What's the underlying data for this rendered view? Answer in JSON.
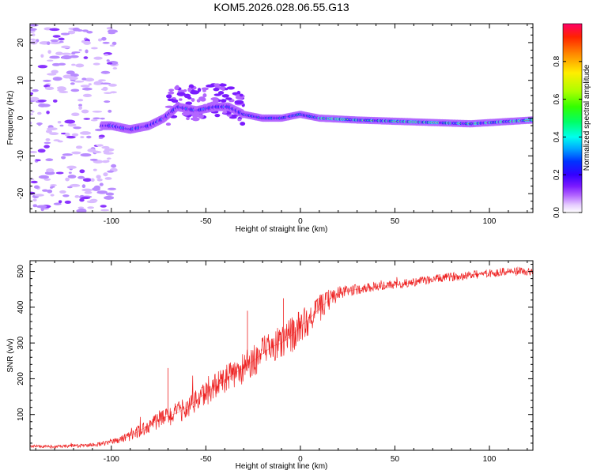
{
  "chart_data": [
    {
      "type": "heatmap",
      "title": "KOM5.2026.028.06.55.G13",
      "xlabel": "Height of straight line (km)",
      "ylabel": "Frequency (Hz)",
      "xlim": [
        -143,
        123
      ],
      "ylim": [
        -25,
        25
      ],
      "xticks": [
        -100,
        -50,
        0,
        50,
        100
      ],
      "xtick_labels": [
        "-100",
        "-50",
        "0",
        "50",
        "100"
      ],
      "yticks": [
        20,
        10,
        0,
        -10,
        -20
      ],
      "ytick_labels": [
        "20",
        "10",
        "0",
        "-10",
        "-20"
      ],
      "colorbar": {
        "label": "Normalized spectral amplitude",
        "range": [
          0,
          1
        ],
        "ticks": [
          0.0,
          0.2,
          0.4,
          0.6,
          0.8
        ],
        "tick_labels": [
          "0.0",
          "0.2",
          "0.4",
          "0.6",
          "0.8"
        ],
        "colors": [
          "#ffffff",
          "#e6ccff",
          "#b366ff",
          "#7a1aff",
          "#3300ff",
          "#0033ff",
          "#00aaff",
          "#00ffee",
          "#00ff66",
          "#33ff00",
          "#aaff00",
          "#ffee00",
          "#ff8800",
          "#ff2200",
          "#ff0066"
        ]
      },
      "ridge": [
        {
          "x": -100,
          "y": -2
        },
        {
          "x": -90,
          "y": -3
        },
        {
          "x": -80,
          "y": -2
        },
        {
          "x": -72,
          "y": 0
        },
        {
          "x": -65,
          "y": 3
        },
        {
          "x": -55,
          "y": 2
        },
        {
          "x": -45,
          "y": 3
        },
        {
          "x": -38,
          "y": 3
        },
        {
          "x": -30,
          "y": 1
        },
        {
          "x": -20,
          "y": 0
        },
        {
          "x": -10,
          "y": 0
        },
        {
          "x": 0,
          "y": 1
        },
        {
          "x": 10,
          "y": 0
        },
        {
          "x": 30,
          "y": -0.5
        },
        {
          "x": 60,
          "y": -1
        },
        {
          "x": 90,
          "y": -1.5
        },
        {
          "x": 123,
          "y": -0.5
        }
      ]
    },
    {
      "type": "line",
      "title": "",
      "xlabel": "Height of straight line (km)",
      "ylabel": "SNR (v/v)",
      "xlim": [
        -143,
        123
      ],
      "ylim": [
        0,
        530
      ],
      "xticks": [
        -100,
        -50,
        0,
        50,
        100
      ],
      "xtick_labels": [
        "-100",
        "-50",
        "0",
        "50",
        "100"
      ],
      "yticks": [
        100,
        200,
        300,
        400,
        500
      ],
      "ytick_labels": [
        "100",
        "200",
        "300",
        "400",
        "500"
      ],
      "series": [
        {
          "name": "SNR",
          "color": "#ee2222",
          "x": [
            -143,
            -130,
            -120,
            -110,
            -100,
            -95,
            -90,
            -85,
            -80,
            -75,
            -70,
            -65,
            -60,
            -55,
            -50,
            -45,
            -40,
            -35,
            -30,
            -25,
            -20,
            -15,
            -10,
            -5,
            0,
            5,
            10,
            15,
            20,
            25,
            30,
            40,
            50,
            60,
            70,
            80,
            90,
            100,
            110,
            123
          ],
          "y": [
            12,
            10,
            12,
            15,
            22,
            30,
            40,
            55,
            70,
            85,
            95,
            105,
            120,
            140,
            160,
            180,
            195,
            215,
            230,
            250,
            270,
            290,
            300,
            320,
            345,
            370,
            395,
            420,
            440,
            445,
            450,
            458,
            462,
            470,
            478,
            485,
            490,
            495,
            500,
            498
          ],
          "noise": [
            4,
            4,
            5,
            5,
            7,
            10,
            14,
            18,
            22,
            26,
            28,
            30,
            32,
            34,
            36,
            38,
            40,
            42,
            44,
            46,
            48,
            50,
            50,
            50,
            48,
            44,
            38,
            30,
            22,
            16,
            14,
            12,
            12,
            12,
            12,
            12,
            12,
            12,
            12,
            12
          ]
        }
      ]
    }
  ]
}
